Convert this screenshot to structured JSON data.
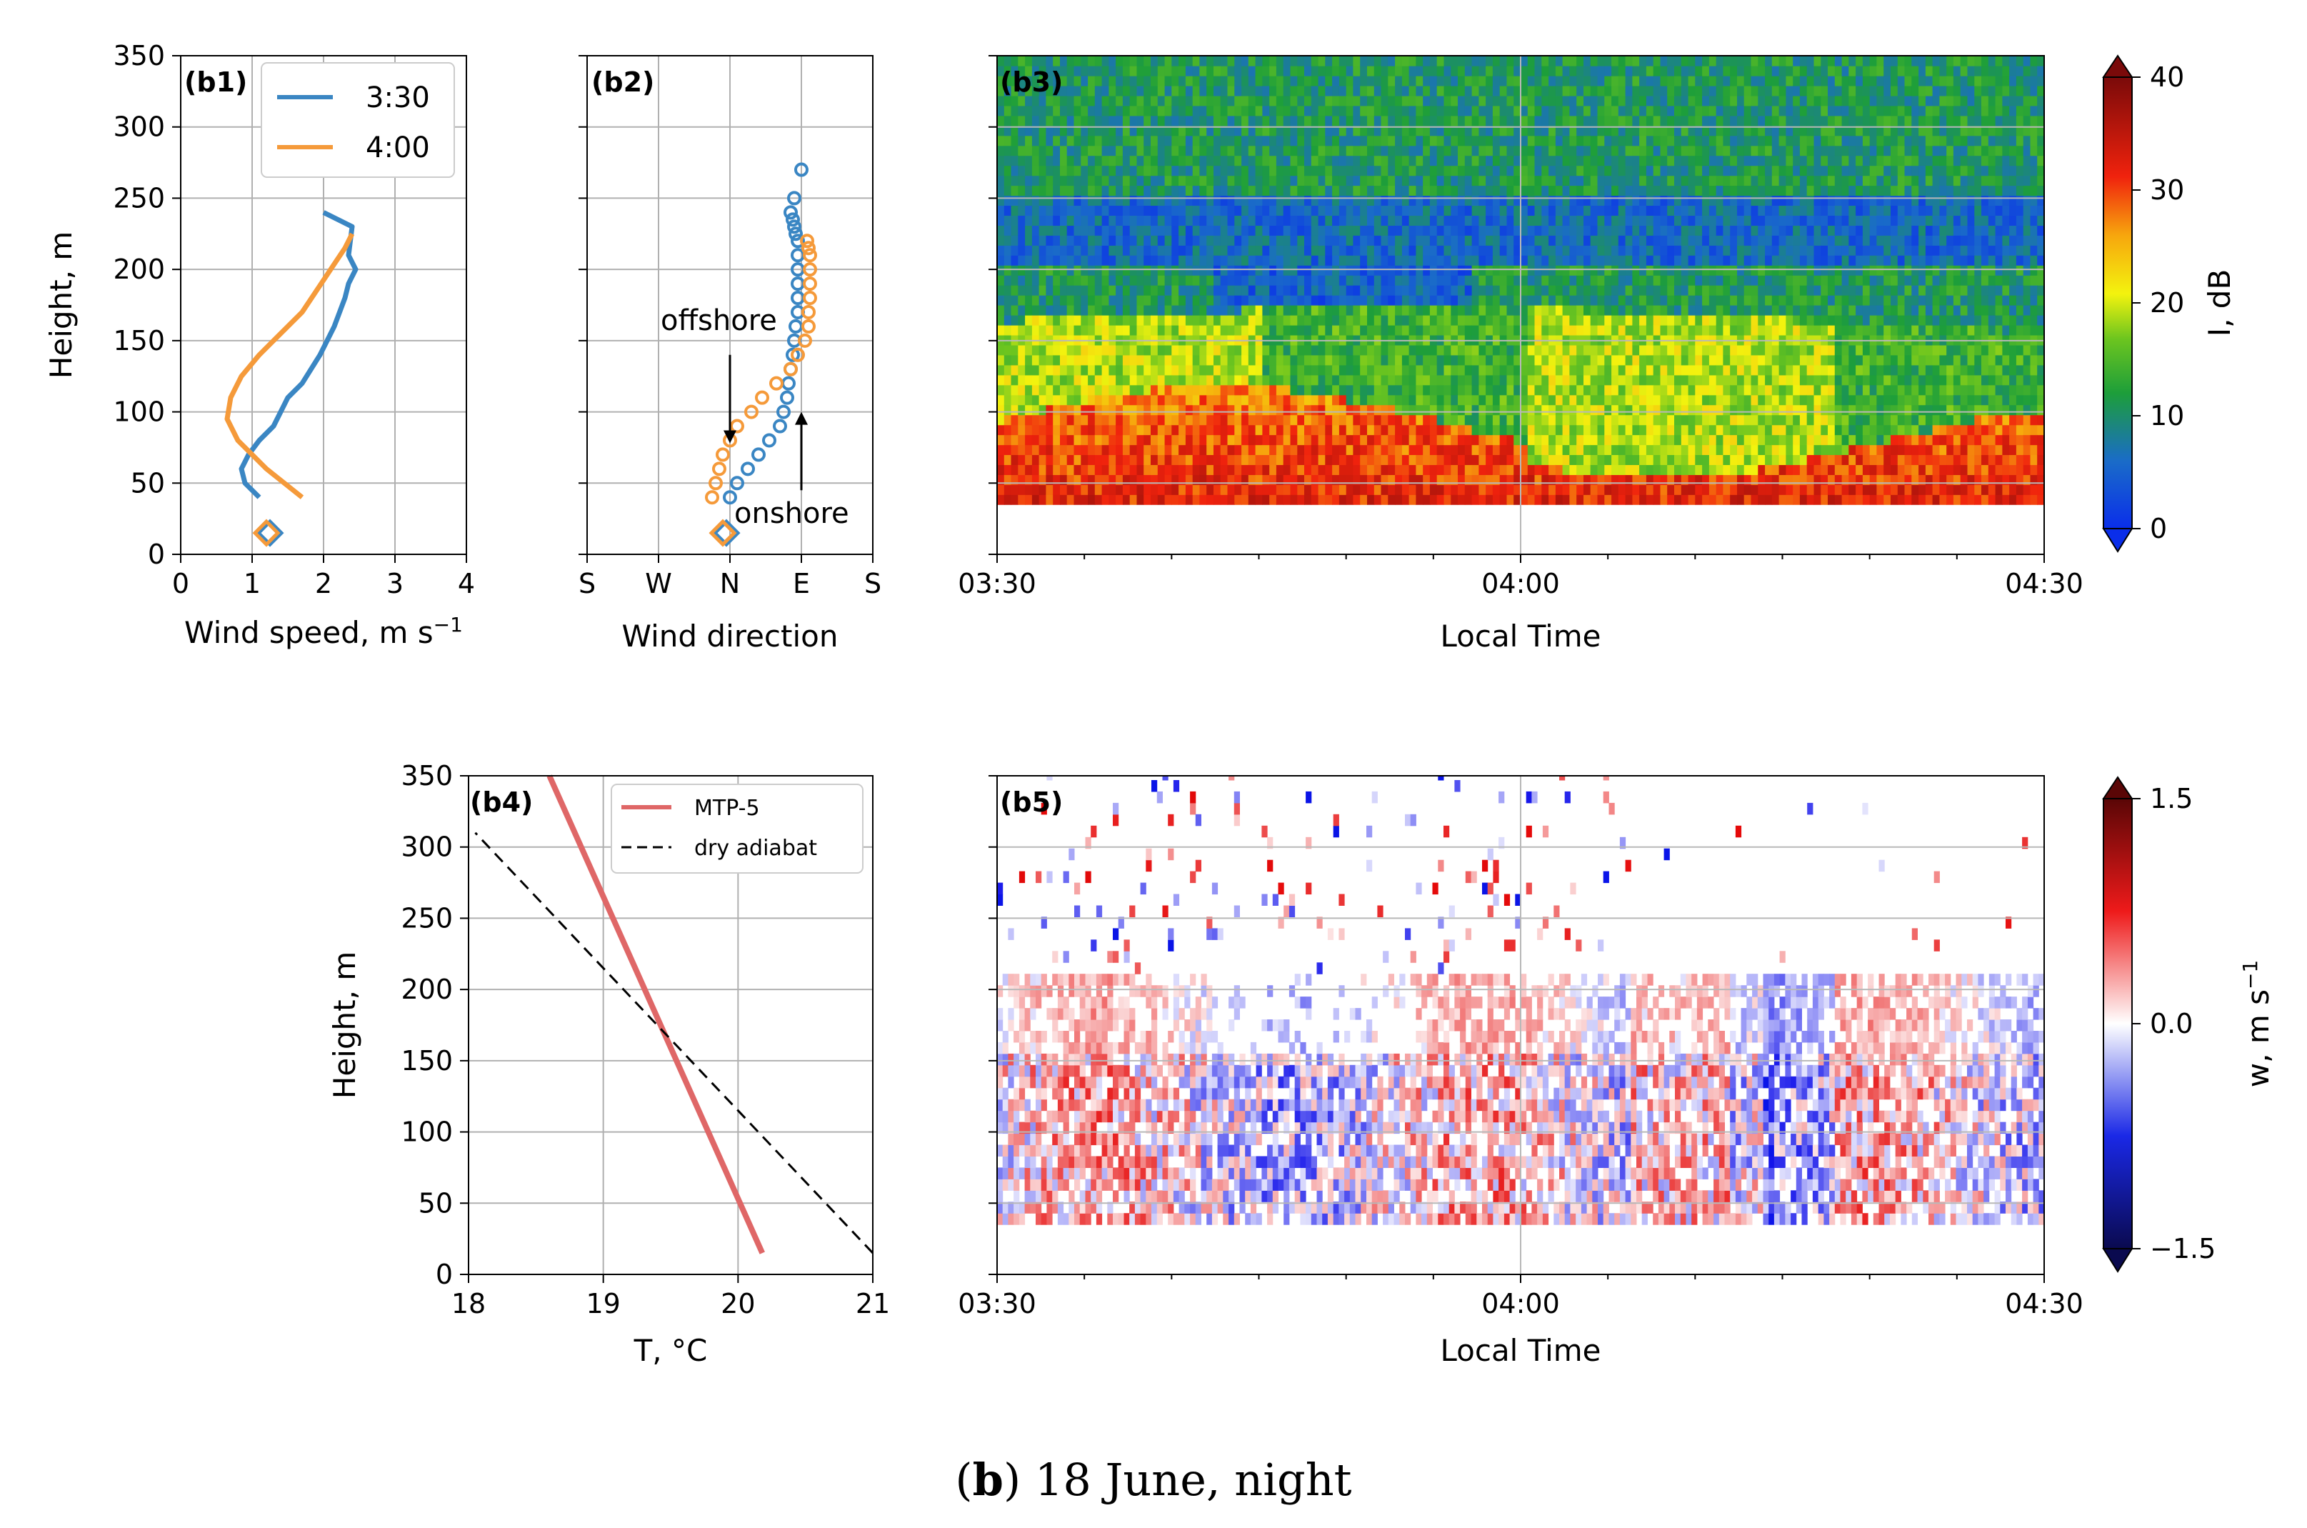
{
  "caption": {
    "letter": "b",
    "text": "18 June, night"
  },
  "colors": {
    "series_330": "#3a86c3",
    "series_400": "#f59a3a",
    "mtp5": "#df6767",
    "adiabat": "#000000",
    "grid": "#b0b0b0"
  },
  "chart_data": [
    {
      "id": "b1",
      "type": "line",
      "panel_label": "(b1)",
      "xlabel": "Wind speed, m s",
      "xlabel_sup": "−1",
      "ylabel": "Height, m",
      "xlim": [
        0,
        4
      ],
      "ylim": [
        0,
        350
      ],
      "xticks": [
        "0",
        "1",
        "2",
        "3",
        "4"
      ],
      "yticks": [
        "0",
        "50",
        "100",
        "150",
        "200",
        "250",
        "300",
        "350"
      ],
      "legend": {
        "position": "upper-right",
        "entries": [
          "3:30",
          "4:00"
        ]
      },
      "series": [
        {
          "name": "3:30",
          "x": [
            1.1,
            0.9,
            0.85,
            0.95,
            1.1,
            1.3,
            1.5,
            1.7,
            1.95,
            2.15,
            2.3,
            2.35,
            2.45,
            2.35,
            2.4,
            2.0
          ],
          "y": [
            40,
            50,
            60,
            70,
            80,
            90,
            110,
            120,
            140,
            160,
            180,
            190,
            200,
            210,
            230,
            240
          ],
          "surface_point": {
            "x": 1.25,
            "y": 15
          }
        },
        {
          "name": "4:00",
          "x": [
            1.7,
            1.2,
            0.8,
            0.65,
            0.7,
            0.85,
            1.1,
            1.4,
            1.7,
            1.9,
            2.1,
            2.3,
            2.4
          ],
          "y": [
            40,
            60,
            80,
            95,
            110,
            125,
            140,
            155,
            170,
            185,
            200,
            215,
            225
          ],
          "surface_point": {
            "x": 1.2,
            "y": 15
          }
        }
      ]
    },
    {
      "id": "b2",
      "type": "scatter",
      "panel_label": "(b2)",
      "xlabel": "Wind direction",
      "xlim": [
        0,
        4
      ],
      "ylim": [
        0,
        350
      ],
      "xticks": [
        "S",
        "W",
        "N",
        "E",
        "S"
      ],
      "series": [
        {
          "name": "3:30",
          "x": [
            2.0,
            2.1,
            2.25,
            2.4,
            2.55,
            2.7,
            2.75,
            2.8,
            2.82,
            2.85,
            2.88,
            2.9,
            2.92,
            2.95,
            2.95,
            2.95,
            2.95,
            2.95,
            2.95,
            2.92,
            2.9,
            2.88,
            2.85,
            2.9,
            3.0
          ],
          "y": [
            40,
            50,
            60,
            70,
            80,
            90,
            100,
            110,
            120,
            130,
            140,
            150,
            160,
            170,
            180,
            190,
            200,
            210,
            220,
            225,
            230,
            235,
            240,
            250,
            270
          ],
          "surface_point": {
            "x": 1.95,
            "y": 15
          }
        },
        {
          "name": "4:00",
          "x": [
            1.75,
            1.8,
            1.85,
            1.9,
            2.0,
            2.1,
            2.3,
            2.45,
            2.65,
            2.85,
            2.95,
            3.05,
            3.1,
            3.1,
            3.12,
            3.12,
            3.12,
            3.12,
            3.1,
            3.08
          ],
          "y": [
            40,
            50,
            60,
            70,
            80,
            90,
            100,
            110,
            120,
            130,
            140,
            150,
            160,
            170,
            180,
            190,
            200,
            210,
            215,
            220
          ],
          "surface_point": {
            "x": 1.9,
            "y": 15
          }
        }
      ],
      "annotations": [
        {
          "text": "offshore",
          "arrow_x": 2.0,
          "arrow_from_y": 140,
          "arrow_to_y": 78
        },
        {
          "text": "onshore",
          "arrow_x": 3.0,
          "arrow_from_y": 45,
          "arrow_to_y": 100
        }
      ]
    },
    {
      "id": "b3",
      "type": "heatmap",
      "panel_label": "(b3)",
      "xlabel": "Local Time",
      "xticks": [
        "03:30",
        "04:00",
        "04:30"
      ],
      "ylim": [
        0,
        350
      ],
      "colorbar": {
        "label": "I, dB",
        "range": [
          0,
          40
        ],
        "ticks": [
          "0",
          "10",
          "20",
          "30",
          "40"
        ]
      },
      "description_layers": [
        {
          "height_range": [
            35,
            90
          ],
          "level_db": 28
        },
        {
          "height_range": [
            90,
            160
          ],
          "level_db": 20
        },
        {
          "height_range": [
            160,
            200
          ],
          "level_db": 10
        },
        {
          "height_range": [
            200,
            250
          ],
          "level_db": 5
        },
        {
          "height_range": [
            250,
            350
          ],
          "level_db": 11
        }
      ]
    },
    {
      "id": "b4",
      "type": "line",
      "panel_label": "(b4)",
      "xlabel": "T, °C",
      "ylabel": "Height, m",
      "xlim": [
        18,
        21
      ],
      "ylim": [
        0,
        350
      ],
      "xticks": [
        "18",
        "19",
        "20",
        "21"
      ],
      "yticks": [
        "0",
        "50",
        "100",
        "150",
        "200",
        "250",
        "300",
        "350"
      ],
      "legend": {
        "position": "upper-right",
        "entries": [
          "MTP-5",
          "dry adiabat"
        ]
      },
      "series": [
        {
          "name": "MTP-5",
          "x": [
            20.18,
            18.6
          ],
          "y": [
            15,
            350
          ]
        },
        {
          "name": "dry adiabat",
          "x": [
            21.0,
            18.05
          ],
          "y": [
            15,
            310
          ]
        }
      ]
    },
    {
      "id": "b5",
      "type": "heatmap",
      "panel_label": "(b5)",
      "xlabel": "Local Time",
      "xticks": [
        "03:30",
        "04:00",
        "04:30"
      ],
      "ylim": [
        0,
        350
      ],
      "colorbar": {
        "label": "w, m s",
        "label_sup": "−1",
        "range": [
          -1.5,
          1.5
        ],
        "ticks": [
          "−1.5",
          "0.0",
          "1.5"
        ]
      }
    }
  ]
}
